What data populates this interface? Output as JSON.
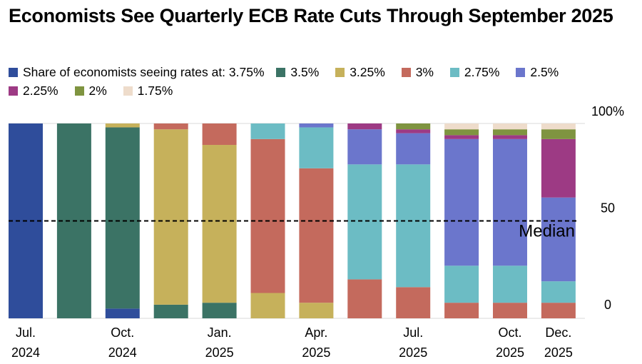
{
  "title": "Economists See Quarterly ECB Rate Cuts Through September 2025",
  "legend": {
    "prefix": "Share of economists seeing rates at:",
    "items": [
      {
        "label": "3.75%",
        "color": "#2f4d9b"
      },
      {
        "label": "3.5%",
        "color": "#3b7365"
      },
      {
        "label": "3.25%",
        "color": "#c6b15b"
      },
      {
        "label": "3%",
        "color": "#c46a5d"
      },
      {
        "label": "2.75%",
        "color": "#6cbcc4"
      },
      {
        "label": "2.5%",
        "color": "#6b76cc"
      },
      {
        "label": "2.25%",
        "color": "#9d3a84"
      },
      {
        "label": "2%",
        "color": "#7f9440"
      },
      {
        "label": "1.75%",
        "color": "#eedccb"
      }
    ]
  },
  "chart_data": {
    "type": "bar",
    "stacked": true,
    "ylim": [
      0,
      100
    ],
    "yticks": [
      {
        "value": 100,
        "label": "100%"
      },
      {
        "value": 50,
        "label": "50"
      },
      {
        "value": 0,
        "label": "0"
      }
    ],
    "median_line": {
      "value": 50,
      "label": "Median"
    },
    "x_labels": [
      {
        "index": 0,
        "line1": "Jul.",
        "line2": "2024"
      },
      {
        "index": 2,
        "line1": "Oct.",
        "line2": "2024"
      },
      {
        "index": 4,
        "line1": "Jan.",
        "line2": "2025"
      },
      {
        "index": 6,
        "line1": "Apr.",
        "line2": "2025"
      },
      {
        "index": 8,
        "line1": "Jul.",
        "line2": "2025"
      },
      {
        "index": 10,
        "line1": "Oct.",
        "line2": "2025"
      },
      {
        "index": 11,
        "line1": "Dec.",
        "line2": "2025"
      }
    ],
    "series_names": [
      "3.75%",
      "3.5%",
      "3.25%",
      "3%",
      "2.75%",
      "2.5%",
      "2.25%",
      "2%",
      "1.75%"
    ],
    "bars": [
      [
        100,
        0,
        0,
        0,
        0,
        0,
        0,
        0,
        0
      ],
      [
        0,
        100,
        0,
        0,
        0,
        0,
        0,
        0,
        0
      ],
      [
        5,
        93,
        2,
        0,
        0,
        0,
        0,
        0,
        0
      ],
      [
        0,
        7,
        90,
        3,
        0,
        0,
        0,
        0,
        0
      ],
      [
        0,
        8,
        81,
        11,
        0,
        0,
        0,
        0,
        0
      ],
      [
        0,
        0,
        13,
        79,
        8,
        0,
        0,
        0,
        0
      ],
      [
        0,
        0,
        8,
        69,
        21,
        2,
        0,
        0,
        0
      ],
      [
        0,
        0,
        0,
        20,
        59,
        18,
        3,
        0,
        0
      ],
      [
        0,
        0,
        0,
        16,
        63,
        16,
        2,
        3,
        0
      ],
      [
        0,
        0,
        0,
        8,
        19,
        65,
        2,
        3,
        3
      ],
      [
        0,
        0,
        0,
        8,
        19,
        65,
        2,
        3,
        3
      ],
      [
        0,
        0,
        0,
        8,
        11,
        43,
        30,
        5,
        3
      ]
    ]
  }
}
